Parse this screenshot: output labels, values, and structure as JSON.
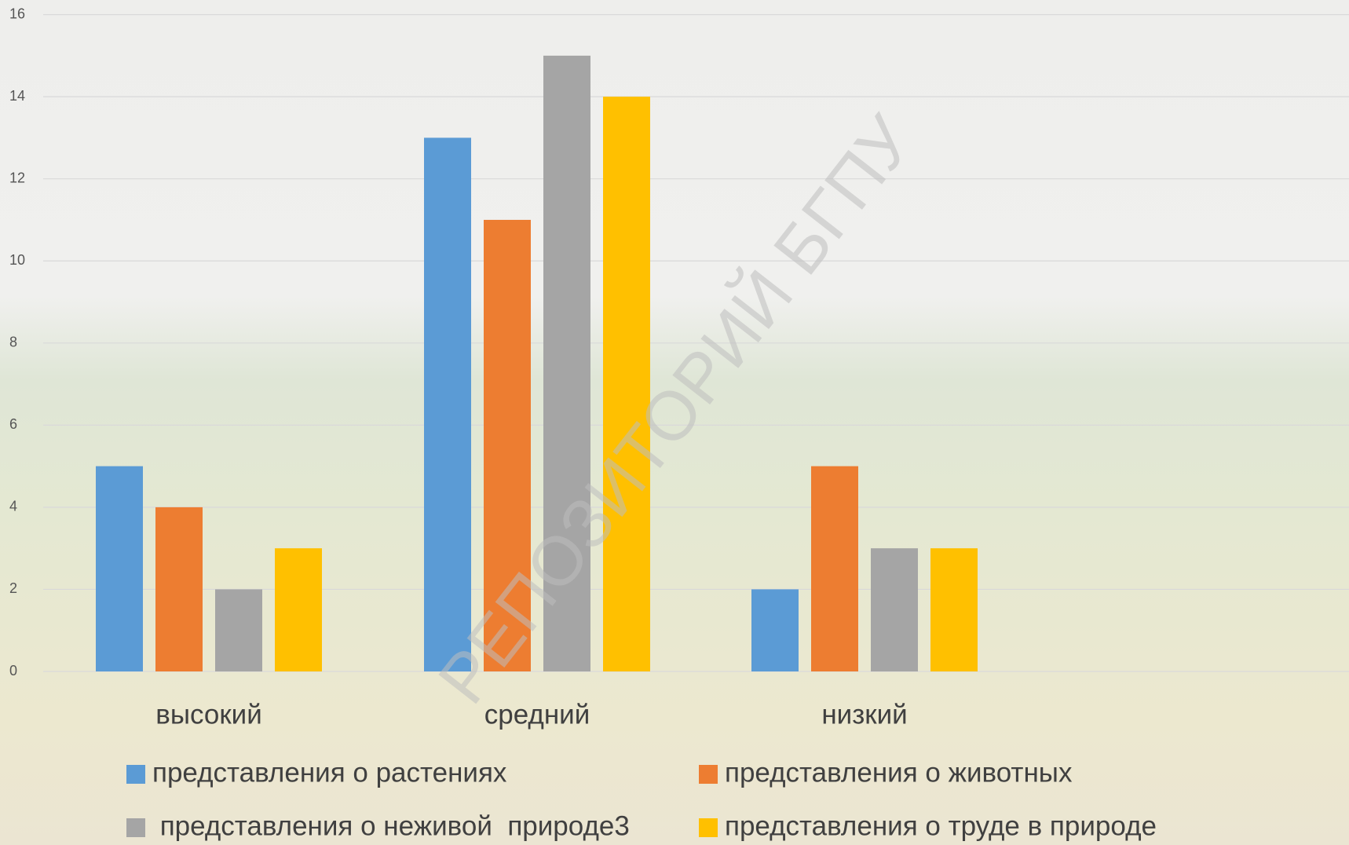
{
  "chart_data": {
    "type": "bar",
    "categories": [
      "высокий",
      "средний",
      "низкий"
    ],
    "series": [
      {
        "name": "представления о растениях",
        "color": "#5b9bd5",
        "values": [
          5,
          13,
          2
        ]
      },
      {
        "name": "представления о животных",
        "color": "#ed7d31",
        "values": [
          4,
          11,
          5
        ]
      },
      {
        "name": " представления о неживой  природе3",
        "color": "#a5a5a5",
        "values": [
          2,
          15,
          3
        ]
      },
      {
        "name": "представления о труде в природе",
        "color": "#ffc000",
        "values": [
          3,
          14,
          3
        ]
      }
    ],
    "ylim": [
      0,
      16
    ],
    "yticks": [
      0,
      2,
      4,
      6,
      8,
      10,
      12,
      14,
      16
    ],
    "grid": true,
    "legend": "bottom",
    "watermark": "РЕПОЗИТОРИЙ БГПУ"
  }
}
